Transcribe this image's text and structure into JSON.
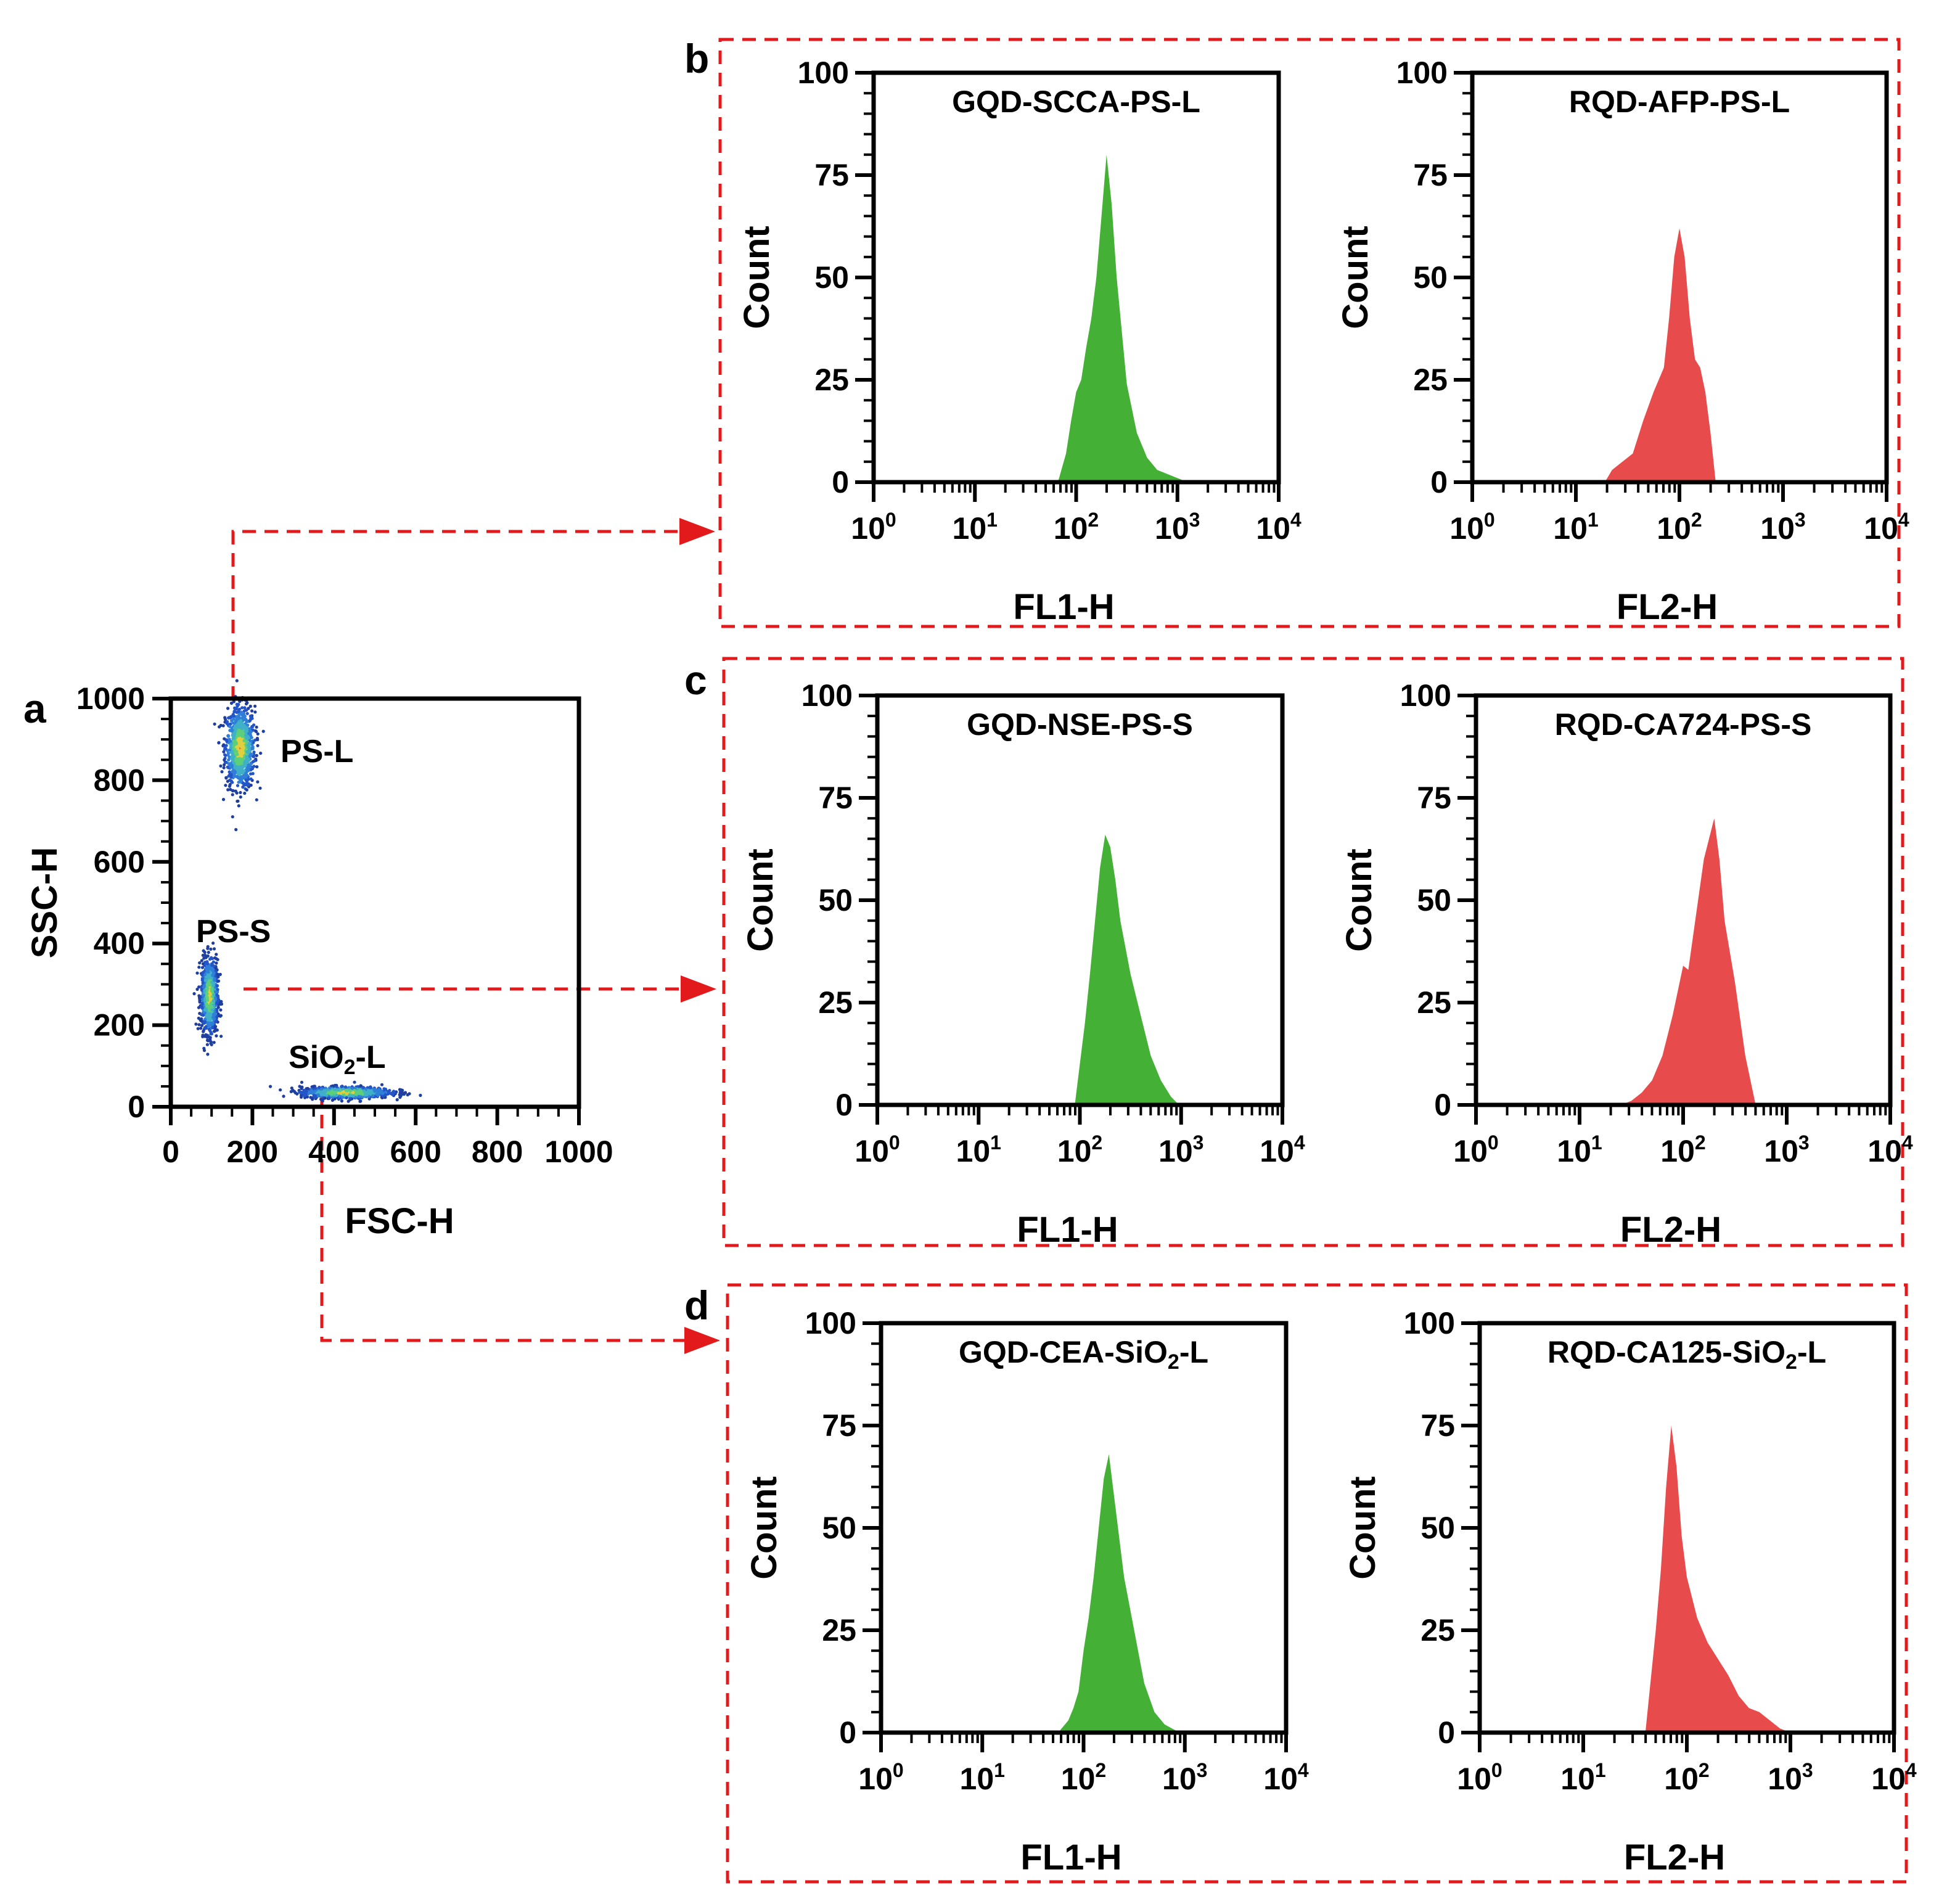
{
  "colors": {
    "green": "#44b035",
    "red": "#e84b4b",
    "connector": "#e31a1c"
  },
  "panel_letters": {
    "a": "a",
    "b": "b",
    "c": "c",
    "d": "d"
  },
  "hist_axis": {
    "ylabel": "Count",
    "yticks": [
      "0",
      "25",
      "50",
      "75",
      "100"
    ],
    "xticks": [
      {
        "base": "10",
        "exp": "0"
      },
      {
        "base": "10",
        "exp": "1"
      },
      {
        "base": "10",
        "exp": "2"
      },
      {
        "base": "10",
        "exp": "3"
      },
      {
        "base": "10",
        "exp": "4"
      }
    ]
  },
  "chart_data": [
    {
      "id": "a",
      "type": "scatter",
      "title": "",
      "xlabel": "FSC-H",
      "ylabel": "SSC-H",
      "xlim": [
        0,
        1000
      ],
      "ylim": [
        0,
        1000
      ],
      "xticks": [
        "0",
        "200",
        "400",
        "600",
        "800",
        "1000"
      ],
      "yticks": [
        "0",
        "200",
        "400",
        "600",
        "800",
        "1000"
      ],
      "populations": [
        {
          "name": "PS-L",
          "label": "PS-L",
          "center": [
            170,
            880
          ],
          "spread": [
            18,
            50
          ]
        },
        {
          "name": "PS-S",
          "label": "PS-S",
          "center": [
            95,
            270
          ],
          "spread": [
            10,
            45
          ]
        },
        {
          "name": "SiO2-L",
          "label_main": "SiO",
          "label_sub": "2",
          "label_tail": "-L",
          "center": [
            430,
            35
          ],
          "spread": [
            55,
            7
          ]
        }
      ]
    },
    {
      "id": "b-left",
      "type": "area",
      "title": "GQD-SCCA-PS-L",
      "xlabel": "FL1-H",
      "ylabel": "Count",
      "color": "green",
      "xscale": "log",
      "xlim": [
        1,
        10000
      ],
      "ylim": [
        0,
        100
      ],
      "x": [
        1.82,
        1.9,
        1.95,
        2.0,
        2.05,
        2.1,
        2.15,
        2.2,
        2.25,
        2.3,
        2.35,
        2.4,
        2.5,
        2.6,
        2.7,
        2.8,
        2.9,
        3.0,
        3.1
      ],
      "y": [
        0,
        7,
        15,
        22,
        25,
        33,
        40,
        50,
        65,
        80,
        68,
        50,
        24,
        12,
        6,
        3,
        2,
        1,
        0
      ]
    },
    {
      "id": "b-right",
      "type": "area",
      "title": "RQD-AFP-PS-L",
      "xlabel": "FL2-H",
      "ylabel": "Count",
      "color": "red",
      "xscale": "log",
      "xlim": [
        1,
        10000
      ],
      "ylim": [
        0,
        100
      ],
      "x": [
        1.28,
        1.35,
        1.45,
        1.55,
        1.65,
        1.75,
        1.85,
        1.9,
        1.95,
        2.0,
        2.05,
        2.1,
        2.15,
        2.2,
        2.25,
        2.3,
        2.35
      ],
      "y": [
        0,
        3,
        5,
        7,
        15,
        22,
        28,
        40,
        55,
        62,
        55,
        40,
        30,
        28,
        22,
        12,
        0
      ]
    },
    {
      "id": "c-left",
      "type": "area",
      "title": "GQD-NSE-PS-S",
      "xlabel": "FL1-H",
      "ylabel": "Count",
      "color": "green",
      "xscale": "log",
      "xlim": [
        1,
        10000
      ],
      "ylim": [
        0,
        100
      ],
      "x": [
        1.95,
        2.0,
        2.05,
        2.1,
        2.15,
        2.2,
        2.25,
        2.3,
        2.35,
        2.4,
        2.5,
        2.6,
        2.7,
        2.8,
        2.9,
        2.98
      ],
      "y": [
        0,
        10,
        20,
        32,
        45,
        58,
        66,
        63,
        55,
        45,
        32,
        22,
        12,
        6,
        2,
        0
      ]
    },
    {
      "id": "c-right",
      "type": "area",
      "title": "RQD-CA724-PS-S",
      "xlabel": "FL2-H",
      "ylabel": "Count",
      "color": "red",
      "xscale": "log",
      "xlim": [
        1,
        10000
      ],
      "ylim": [
        0,
        100
      ],
      "x": [
        1.4,
        1.5,
        1.6,
        1.7,
        1.8,
        1.9,
        2.0,
        2.05,
        2.1,
        2.2,
        2.25,
        2.3,
        2.35,
        2.4,
        2.5,
        2.6,
        2.7
      ],
      "y": [
        0,
        1,
        3,
        6,
        12,
        22,
        34,
        33,
        42,
        60,
        65,
        70,
        60,
        45,
        30,
        12,
        0
      ]
    },
    {
      "id": "d-left",
      "type": "area",
      "title": "GQD-CEA-SiO2-L",
      "title_parts": [
        "GQD-CEA-SiO",
        "2",
        "-L"
      ],
      "xlabel": "FL1-H",
      "ylabel": "Count",
      "color": "green",
      "xscale": "log",
      "xlim": [
        1,
        10000
      ],
      "ylim": [
        0,
        100
      ],
      "x": [
        1.75,
        1.85,
        1.9,
        1.95,
        2.0,
        2.05,
        2.1,
        2.15,
        2.2,
        2.25,
        2.3,
        2.35,
        2.4,
        2.5,
        2.6,
        2.7,
        2.8,
        2.95
      ],
      "y": [
        0,
        3,
        6,
        10,
        20,
        28,
        38,
        50,
        62,
        68,
        58,
        48,
        38,
        25,
        12,
        5,
        2,
        0
      ]
    },
    {
      "id": "d-right",
      "type": "area",
      "title": "RQD-CA125-SiO2-L",
      "title_parts": [
        "RQD-CA125-SiO",
        "2",
        "-L"
      ],
      "xlabel": "FL2-H",
      "ylabel": "Count",
      "color": "red",
      "xscale": "log",
      "xlim": [
        1,
        10000
      ],
      "ylim": [
        0,
        100
      ],
      "x": [
        1.6,
        1.7,
        1.75,
        1.8,
        1.85,
        1.9,
        1.95,
        2.0,
        2.1,
        2.2,
        2.3,
        2.4,
        2.5,
        2.6,
        2.7,
        2.8,
        2.9,
        3.0
      ],
      "y": [
        0,
        25,
        40,
        60,
        75,
        65,
        48,
        38,
        28,
        22,
        18,
        14,
        9,
        6,
        5,
        3,
        1,
        0
      ]
    }
  ]
}
